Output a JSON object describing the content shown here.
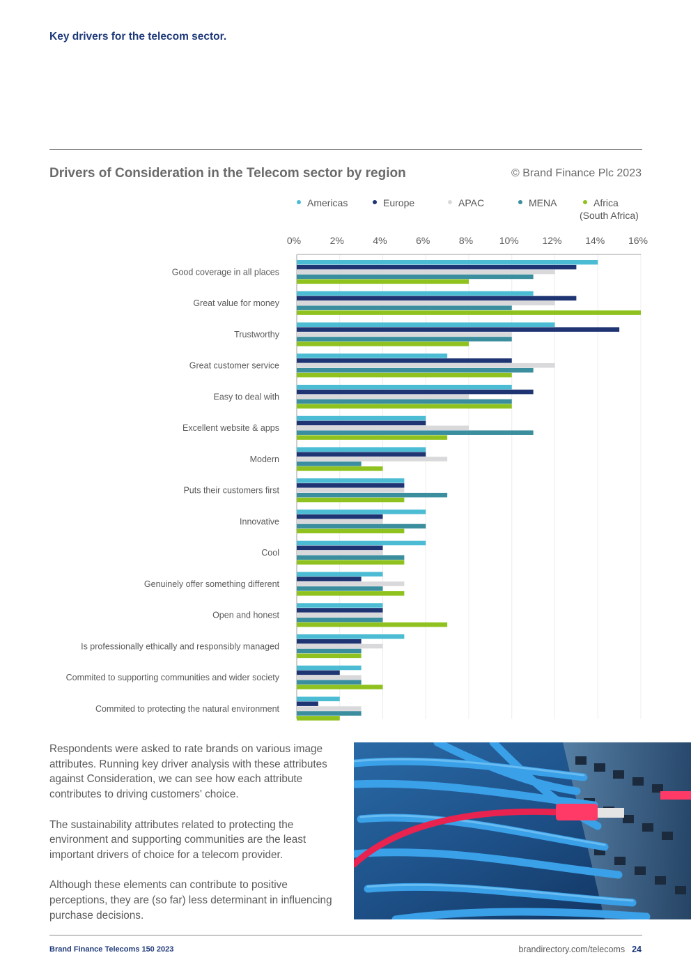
{
  "page": {
    "section_title": "Key drivers for the telecom sector.",
    "chart_title": "Drivers of Consideration in the Telecom sector by region",
    "copyright": "© Brand Finance Plc 2023",
    "paragraphs": [
      "Respondents were asked to rate brands on various image attributes. Running key driver analysis with these attributes against Consideration, we can see how each attribute contributes to driving customers' choice.",
      "The sustainability attributes related to protecting the environment and supporting communities are the least important drivers of choice for a telecom provider.",
      "Although these elements can contribute to positive perceptions, they are (so far) less determinant in influencing purchase decisions."
    ],
    "footer_left": "Brand Finance Telecoms 150 2023",
    "footer_url": "brandirectory.com/telecoms",
    "page_number": "24"
  },
  "legend": [
    {
      "name": "Americas",
      "sub": "",
      "color": "#4bbcd3"
    },
    {
      "name": "Europe",
      "sub": "",
      "color": "#1f3472"
    },
    {
      "name": "APAC",
      "sub": "",
      "color": "#d9d9db"
    },
    {
      "name": "MENA",
      "sub": "",
      "color": "#3a8e9d"
    },
    {
      "name": "Africa",
      "sub": "(South Africa)",
      "color": "#8fc21f"
    }
  ],
  "chart_data": {
    "type": "bar",
    "orientation": "horizontal",
    "title": "Drivers of Consideration in the Telecom sector by region",
    "xlim": [
      0,
      16
    ],
    "xticks": [
      "0%",
      "2%",
      "4%",
      "6%",
      "8%",
      "10%",
      "12%",
      "14%",
      "16%"
    ],
    "grid": true,
    "legend_position": "top",
    "categories": [
      "Good coverage in all places",
      "Great value for money",
      "Trustworthy",
      "Great customer service",
      "Easy to deal with",
      "Excellent website & apps",
      "Modern",
      "Puts their customers first",
      "Innovative",
      "Cool",
      "Genuinely offer something different",
      "Open and honest",
      "Is professionally ethically and responsibly managed",
      "Commited to supporting communities and wider society",
      "Commited to protecting the natural environment"
    ],
    "series": [
      {
        "name": "Americas",
        "color": "#4bbcd3",
        "values": [
          14,
          11,
          12,
          7,
          10,
          6,
          6,
          5,
          6,
          6,
          4,
          4,
          5,
          3,
          2
        ]
      },
      {
        "name": "Europe",
        "color": "#1f3472",
        "values": [
          13,
          13,
          15,
          10,
          11,
          6,
          6,
          5,
          4,
          4,
          3,
          4,
          3,
          2,
          1
        ]
      },
      {
        "name": "APAC",
        "color": "#d9d9db",
        "values": [
          12,
          12,
          10,
          12,
          8,
          8,
          7,
          5,
          4,
          4,
          5,
          4,
          4,
          3,
          3
        ]
      },
      {
        "name": "MENA",
        "color": "#3a8e9d",
        "values": [
          11,
          10,
          10,
          11,
          10,
          11,
          3,
          7,
          6,
          5,
          4,
          4,
          3,
          3,
          3
        ]
      },
      {
        "name": "Africa (South Africa)",
        "color": "#8fc21f",
        "values": [
          8,
          16,
          8,
          10,
          10,
          7,
          4,
          5,
          5,
          5,
          5,
          7,
          3,
          4,
          2
        ]
      }
    ]
  }
}
